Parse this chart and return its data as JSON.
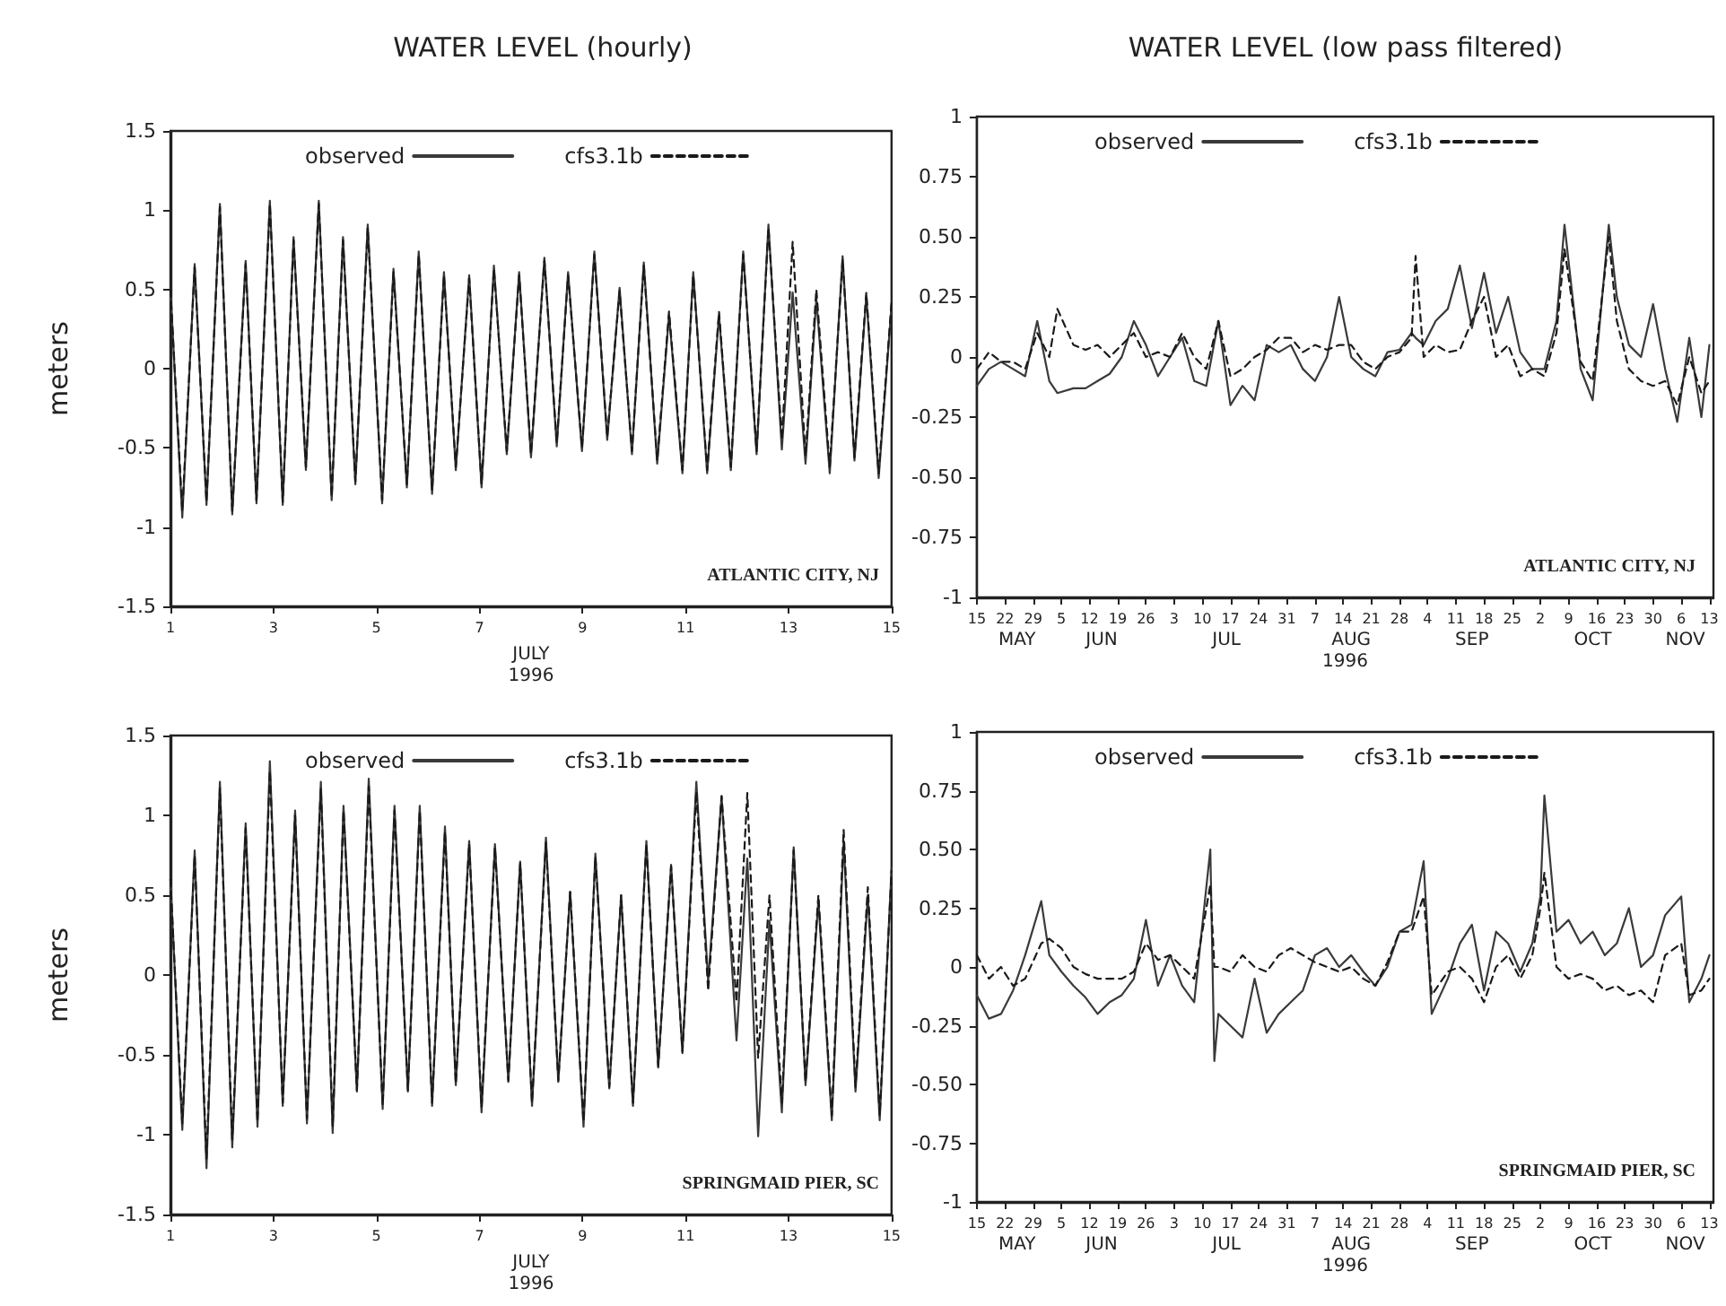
{
  "chart_data": [
    {
      "type": "line",
      "title": "WATER LEVEL (hourly)",
      "xlabel": "JULY\n1996",
      "ylabel": "meters",
      "annotations": [
        "ATLANTIC CITY, NJ"
      ],
      "legend": "top left",
      "marker": "none",
      "xlim": [
        1,
        15
      ],
      "xticks": [
        1,
        3,
        5,
        7,
        9,
        11,
        13,
        15
      ],
      "ylim": [
        -1.5,
        1.5
      ],
      "yticks": [
        -1.5,
        -1,
        -0.5,
        0,
        0.5,
        1,
        1.5
      ],
      "x": [
        1.0,
        1.23,
        1.47,
        1.7,
        1.96,
        2.2,
        2.46,
        2.67,
        2.93,
        3.18,
        3.39,
        3.63,
        3.88,
        4.13,
        4.35,
        4.59,
        4.83,
        5.11,
        5.33,
        5.59,
        5.82,
        6.08,
        6.31,
        6.54,
        6.8,
        7.04,
        7.28,
        7.53,
        7.77,
        8.0,
        8.26,
        8.5,
        8.72,
        8.99,
        9.23,
        9.48,
        9.72,
        9.96,
        10.19,
        10.45,
        10.68,
        10.94,
        11.15,
        11.42,
        11.65,
        11.88,
        12.12,
        12.38,
        12.61,
        12.87,
        13.08,
        13.33,
        13.54,
        13.8,
        14.05,
        14.28,
        14.51,
        14.75,
        15.0
      ],
      "series": [
        {
          "name": "observed",
          "color": "#3a3a3a",
          "line_style": "solid",
          "values": [
            0.5,
            -0.94,
            0.66,
            -0.86,
            1.04,
            -0.92,
            0.68,
            -0.85,
            1.06,
            -0.86,
            0.83,
            -0.64,
            1.06,
            -0.83,
            0.83,
            -0.73,
            0.91,
            -0.85,
            0.63,
            -0.75,
            0.74,
            -0.79,
            0.61,
            -0.64,
            0.59,
            -0.75,
            0.65,
            -0.54,
            0.61,
            -0.56,
            0.7,
            -0.49,
            0.61,
            -0.52,
            0.74,
            -0.45,
            0.51,
            -0.54,
            0.67,
            -0.6,
            0.34,
            -0.66,
            0.61,
            -0.66,
            0.34,
            -0.64,
            0.74,
            -0.54,
            0.91,
            -0.51,
            0.48,
            -0.6,
            0.44,
            -0.66,
            0.71,
            -0.58,
            0.46,
            -0.69,
            0.4
          ]
        },
        {
          "name": "cfs3.1b",
          "color": "#1a1a1a",
          "line_style": "dashed",
          "values": [
            0.5,
            -0.9,
            0.64,
            -0.84,
            1.02,
            -0.9,
            0.66,
            -0.83,
            1.04,
            -0.84,
            0.81,
            -0.62,
            1.04,
            -0.81,
            0.81,
            -0.71,
            0.89,
            -0.83,
            0.61,
            -0.73,
            0.72,
            -0.77,
            0.59,
            -0.62,
            0.57,
            -0.73,
            0.63,
            -0.52,
            0.59,
            -0.54,
            0.68,
            -0.47,
            0.59,
            -0.5,
            0.72,
            -0.43,
            0.49,
            -0.52,
            0.65,
            -0.58,
            0.36,
            -0.64,
            0.59,
            -0.64,
            0.36,
            -0.62,
            0.72,
            -0.52,
            0.89,
            -0.45,
            0.8,
            -0.55,
            0.5,
            -0.62,
            0.69,
            -0.56,
            0.48,
            -0.66,
            0.42
          ]
        }
      ]
    },
    {
      "type": "line",
      "title": "WATER LEVEL (low pass filtered)",
      "xlabel": "1996",
      "annotations": [
        "ATLANTIC CITY, NJ"
      ],
      "legend": "top left",
      "marker": "none",
      "xlim": [
        "1996-05-15",
        "1996-11-14"
      ],
      "xticks": [
        {
          "value": "1996-05-15",
          "label": "15"
        },
        {
          "value": "1996-05-22",
          "label": "22"
        },
        {
          "value": "1996-05-29",
          "label": "29"
        },
        {
          "value": "1996-06-05",
          "label": "5"
        },
        {
          "value": "1996-06-12",
          "label": "12"
        },
        {
          "value": "1996-06-19",
          "label": "19"
        },
        {
          "value": "1996-06-26",
          "label": "26"
        },
        {
          "value": "1996-07-03",
          "label": "3"
        },
        {
          "value": "1996-07-10",
          "label": "10"
        },
        {
          "value": "1996-07-17",
          "label": "17"
        },
        {
          "value": "1996-07-24",
          "label": "24"
        },
        {
          "value": "1996-07-31",
          "label": "31"
        },
        {
          "value": "1996-08-07",
          "label": "7"
        },
        {
          "value": "1996-08-14",
          "label": "14"
        },
        {
          "value": "1996-08-21",
          "label": "21"
        },
        {
          "value": "1996-08-28",
          "label": "28"
        },
        {
          "value": "1996-09-04",
          "label": "4"
        },
        {
          "value": "1996-09-11",
          "label": "11"
        },
        {
          "value": "1996-09-18",
          "label": "18"
        },
        {
          "value": "1996-09-25",
          "label": "25"
        },
        {
          "value": "1996-10-02",
          "label": "2"
        },
        {
          "value": "1996-10-09",
          "label": "9"
        },
        {
          "value": "1996-10-16",
          "label": "16"
        },
        {
          "value": "1996-10-23",
          "label": "23"
        },
        {
          "value": "1996-10-30",
          "label": "30"
        },
        {
          "value": "1996-11-06",
          "label": "6"
        },
        {
          "value": "1996-11-13",
          "label": "13"
        }
      ],
      "x2lim": [
        "1996-05-15",
        "1996-11-14"
      ],
      "x2ticks": [
        {
          "value": "1996-05-25",
          "label": "MAY"
        },
        {
          "value": "1996-06-15",
          "label": "JUN"
        },
        {
          "value": "1996-07-16",
          "label": "JUL"
        },
        {
          "value": "1996-08-16",
          "label": "AUG"
        },
        {
          "value": "1996-09-15",
          "label": "SEP"
        },
        {
          "value": "1996-10-15",
          "label": "OCT"
        },
        {
          "value": "1996-11-07",
          "label": "NOV"
        }
      ],
      "ylim": [
        -1,
        1
      ],
      "yticks": [
        -1,
        {
          "value": -0.75,
          "label": "-0.75"
        },
        {
          "value": -0.5,
          "label": "-0.50"
        },
        {
          "value": -0.25,
          "label": "-0.25"
        },
        0,
        0.25,
        {
          "value": 0.5,
          "label": "0.50"
        },
        0.75,
        1
      ],
      "x": [
        "1996-05-15",
        "1996-05-18",
        "1996-05-21",
        "1996-05-24",
        "1996-05-27",
        "1996-05-30",
        "1996-06-02",
        "1996-06-04",
        "1996-06-08",
        "1996-06-11",
        "1996-06-14",
        "1996-06-17",
        "1996-06-20",
        "1996-06-23",
        "1996-06-26",
        "1996-06-29",
        "1996-07-02",
        "1996-07-05",
        "1996-07-08",
        "1996-07-11",
        "1996-07-14",
        "1996-07-17",
        "1996-07-20",
        "1996-07-23",
        "1996-07-26",
        "1996-07-29",
        "1996-08-01",
        "1996-08-04",
        "1996-08-07",
        "1996-08-10",
        "1996-08-13",
        "1996-08-16",
        "1996-08-19",
        "1996-08-22",
        "1996-08-25",
        "1996-08-28",
        "1996-08-31",
        "1996-09-01",
        "1996-09-03",
        "1996-09-06",
        "1996-09-09",
        "1996-09-12",
        "1996-09-15",
        "1996-09-18",
        "1996-09-21",
        "1996-09-24",
        "1996-09-27",
        "1996-09-30",
        "1996-10-03",
        "1996-10-06",
        "1996-10-08",
        "1996-10-12",
        "1996-10-15",
        "1996-10-19",
        "1996-10-21",
        "1996-10-24",
        "1996-10-27",
        "1996-10-30",
        "1996-11-02",
        "1996-11-05",
        "1996-11-08",
        "1996-11-11",
        "1996-11-13"
      ],
      "series": [
        {
          "name": "observed",
          "color": "#3a3a3a",
          "line_style": "solid",
          "values": [
            -0.12,
            -0.05,
            -0.02,
            -0.05,
            -0.08,
            0.15,
            -0.1,
            -0.15,
            -0.13,
            -0.13,
            -0.1,
            -0.07,
            0.0,
            0.15,
            0.05,
            -0.08,
            0.0,
            0.08,
            -0.1,
            -0.12,
            0.15,
            -0.2,
            -0.12,
            -0.18,
            0.05,
            0.02,
            0.05,
            -0.05,
            -0.1,
            0.0,
            0.25,
            0.0,
            -0.05,
            -0.08,
            0.02,
            0.03,
            0.1,
            0.08,
            0.05,
            0.15,
            0.2,
            0.38,
            0.12,
            0.35,
            0.1,
            0.25,
            0.02,
            -0.05,
            -0.05,
            0.15,
            0.55,
            -0.05,
            -0.18,
            0.55,
            0.25,
            0.05,
            0.0,
            0.22,
            -0.05,
            -0.27,
            0.08,
            -0.25,
            0.05
          ]
        },
        {
          "name": "cfs3.1b",
          "color": "#1a1a1a",
          "line_style": "dashed",
          "values": [
            -0.05,
            0.02,
            -0.02,
            -0.02,
            -0.05,
            0.1,
            0.0,
            0.2,
            0.05,
            0.03,
            0.05,
            0.0,
            0.05,
            0.1,
            0.0,
            0.02,
            0.0,
            0.1,
            0.0,
            -0.05,
            0.15,
            -0.08,
            -0.05,
            0.0,
            0.03,
            0.08,
            0.08,
            0.02,
            0.05,
            0.03,
            0.05,
            0.05,
            -0.02,
            -0.05,
            0.0,
            0.02,
            0.08,
            0.42,
            0.0,
            0.05,
            0.02,
            0.03,
            0.15,
            0.25,
            0.0,
            0.05,
            -0.08,
            -0.05,
            -0.08,
            0.1,
            0.45,
            -0.02,
            -0.1,
            0.5,
            0.15,
            -0.05,
            -0.1,
            -0.12,
            -0.1,
            -0.2,
            0.0,
            -0.15,
            -0.1
          ]
        }
      ]
    },
    {
      "type": "line",
      "xlabel": "JULY\n1996",
      "ylabel": "meters",
      "annotations": [
        "SPRINGMAID PIER, SC"
      ],
      "legend": "top left",
      "marker": "none",
      "xlim": [
        1,
        15
      ],
      "xticks": [
        1,
        3,
        5,
        7,
        9,
        11,
        13,
        15
      ],
      "ylim": [
        -1.5,
        1.5
      ],
      "yticks": [
        -1.5,
        -1,
        -0.5,
        0,
        0.5,
        1,
        1.5
      ],
      "x": [
        1.0,
        1.23,
        1.47,
        1.7,
        1.96,
        2.2,
        2.46,
        2.69,
        2.93,
        3.18,
        3.42,
        3.65,
        3.92,
        4.15,
        4.36,
        4.62,
        4.85,
        5.12,
        5.35,
        5.61,
        5.84,
        6.08,
        6.33,
        6.54,
        6.8,
        7.04,
        7.3,
        7.56,
        7.79,
        8.02,
        8.29,
        8.53,
        8.76,
        9.02,
        9.25,
        9.52,
        9.75,
        9.98,
        10.24,
        10.47,
        10.72,
        10.94,
        11.21,
        11.44,
        11.7,
        11.99,
        12.2,
        12.41,
        12.63,
        12.87,
        13.1,
        13.33,
        13.58,
        13.84,
        14.07,
        14.3,
        14.54,
        14.77,
        15.0
      ],
      "series": [
        {
          "name": "observed",
          "color": "#3a3a3a",
          "line_style": "solid",
          "values": [
            0.6,
            -0.97,
            0.78,
            -1.21,
            1.21,
            -1.08,
            0.95,
            -0.95,
            1.34,
            -0.82,
            1.03,
            -0.93,
            1.21,
            -0.99,
            1.06,
            -0.73,
            1.23,
            -0.84,
            1.06,
            -0.73,
            1.06,
            -0.82,
            0.93,
            -0.69,
            0.84,
            -0.86,
            0.82,
            -0.67,
            0.71,
            -0.82,
            0.86,
            -0.67,
            0.52,
            -0.95,
            0.76,
            -0.71,
            0.5,
            -0.82,
            0.84,
            -0.58,
            0.69,
            -0.49,
            1.21,
            -0.04,
            1.12,
            -0.41,
            0.73,
            -1.01,
            0.34,
            -0.86,
            0.8,
            -0.69,
            0.47,
            -0.91,
            0.84,
            -0.73,
            0.5,
            -0.91,
            0.67
          ]
        },
        {
          "name": "cfs3.1b",
          "color": "#1a1a1a",
          "line_style": "dashed",
          "values": [
            0.6,
            -0.93,
            0.75,
            -1.15,
            1.17,
            -1.03,
            0.92,
            -0.92,
            1.28,
            -0.8,
            1.0,
            -0.9,
            1.17,
            -0.95,
            1.03,
            -0.72,
            1.18,
            -0.82,
            1.03,
            -0.72,
            1.03,
            -0.8,
            0.9,
            -0.68,
            0.82,
            -0.83,
            0.8,
            -0.66,
            0.7,
            -0.8,
            0.83,
            -0.66,
            0.52,
            -0.92,
            0.74,
            -0.7,
            0.5,
            -0.8,
            0.82,
            -0.57,
            0.68,
            -0.48,
            1.15,
            -0.1,
            1.12,
            -0.17,
            1.14,
            -0.52,
            0.5,
            -0.8,
            0.78,
            -0.67,
            0.5,
            -0.88,
            0.91,
            -0.7,
            0.55,
            -0.88,
            0.65
          ]
        }
      ]
    },
    {
      "type": "line",
      "xlabel": "1996",
      "annotations": [
        "SPRINGMAID PIER, SC"
      ],
      "legend": "top left",
      "marker": "none",
      "xlim": [
        "1996-05-15",
        "1996-11-14"
      ],
      "xticks": [
        {
          "value": "1996-05-15",
          "label": "15"
        },
        {
          "value": "1996-05-22",
          "label": "22"
        },
        {
          "value": "1996-05-29",
          "label": "29"
        },
        {
          "value": "1996-06-05",
          "label": "5"
        },
        {
          "value": "1996-06-12",
          "label": "12"
        },
        {
          "value": "1996-06-19",
          "label": "19"
        },
        {
          "value": "1996-06-26",
          "label": "26"
        },
        {
          "value": "1996-07-03",
          "label": "3"
        },
        {
          "value": "1996-07-10",
          "label": "10"
        },
        {
          "value": "1996-07-17",
          "label": "17"
        },
        {
          "value": "1996-07-24",
          "label": "24"
        },
        {
          "value": "1996-07-31",
          "label": "31"
        },
        {
          "value": "1996-08-07",
          "label": "7"
        },
        {
          "value": "1996-08-14",
          "label": "14"
        },
        {
          "value": "1996-08-21",
          "label": "21"
        },
        {
          "value": "1996-08-28",
          "label": "28"
        },
        {
          "value": "1996-09-04",
          "label": "4"
        },
        {
          "value": "1996-09-11",
          "label": "11"
        },
        {
          "value": "1996-09-18",
          "label": "18"
        },
        {
          "value": "1996-09-25",
          "label": "25"
        },
        {
          "value": "1996-10-02",
          "label": "2"
        },
        {
          "value": "1996-10-09",
          "label": "9"
        },
        {
          "value": "1996-10-16",
          "label": "16"
        },
        {
          "value": "1996-10-23",
          "label": "23"
        },
        {
          "value": "1996-10-30",
          "label": "30"
        },
        {
          "value": "1996-11-06",
          "label": "6"
        },
        {
          "value": "1996-11-13",
          "label": "13"
        }
      ],
      "x2lim": [
        "1996-05-15",
        "1996-11-14"
      ],
      "x2ticks": [
        {
          "value": "1996-05-25",
          "label": "MAY"
        },
        {
          "value": "1996-06-15",
          "label": "JUN"
        },
        {
          "value": "1996-07-16",
          "label": "JUL"
        },
        {
          "value": "1996-08-16",
          "label": "AUG"
        },
        {
          "value": "1996-09-15",
          "label": "SEP"
        },
        {
          "value": "1996-10-15",
          "label": "OCT"
        },
        {
          "value": "1996-11-07",
          "label": "NOV"
        }
      ],
      "ylim": [
        -1,
        1
      ],
      "yticks": [
        -1,
        {
          "value": -0.75,
          "label": "-0.75"
        },
        {
          "value": -0.5,
          "label": "-0.50"
        },
        {
          "value": -0.25,
          "label": "-0.25"
        },
        0,
        0.25,
        {
          "value": 0.5,
          "label": "0.50"
        },
        0.75,
        1
      ],
      "x": [
        "1996-05-15",
        "1996-05-18",
        "1996-05-21",
        "1996-05-24",
        "1996-05-27",
        "1996-05-31",
        "1996-06-02",
        "1996-06-05",
        "1996-06-08",
        "1996-06-11",
        "1996-06-14",
        "1996-06-17",
        "1996-06-20",
        "1996-06-23",
        "1996-06-26",
        "1996-06-29",
        "1996-07-02",
        "1996-07-05",
        "1996-07-08",
        "1996-07-12",
        "1996-07-13",
        "1996-07-14",
        "1996-07-17",
        "1996-07-20",
        "1996-07-23",
        "1996-07-26",
        "1996-07-29",
        "1996-08-01",
        "1996-08-04",
        "1996-08-07",
        "1996-08-10",
        "1996-08-13",
        "1996-08-16",
        "1996-08-19",
        "1996-08-22",
        "1996-08-25",
        "1996-08-28",
        "1996-08-31",
        "1996-09-03",
        "1996-09-05",
        "1996-09-09",
        "1996-09-12",
        "1996-09-15",
        "1996-09-18",
        "1996-09-21",
        "1996-09-24",
        "1996-09-27",
        "1996-09-30",
        "1996-10-02",
        "1996-10-03",
        "1996-10-06",
        "1996-10-09",
        "1996-10-12",
        "1996-10-15",
        "1996-10-18",
        "1996-10-21",
        "1996-10-24",
        "1996-10-27",
        "1996-10-30",
        "1996-11-02",
        "1996-11-06",
        "1996-11-08",
        "1996-11-11",
        "1996-11-13"
      ],
      "series": [
        {
          "name": "observed",
          "color": "#3a3a3a",
          "line_style": "solid",
          "values": [
            -0.12,
            -0.22,
            -0.2,
            -0.1,
            0.05,
            0.28,
            0.05,
            -0.02,
            -0.08,
            -0.13,
            -0.2,
            -0.15,
            -0.12,
            -0.05,
            0.2,
            -0.08,
            0.05,
            -0.08,
            -0.15,
            0.5,
            -0.4,
            -0.2,
            -0.25,
            -0.3,
            -0.05,
            -0.28,
            -0.2,
            -0.15,
            -0.1,
            0.05,
            0.08,
            0.0,
            0.05,
            -0.02,
            -0.08,
            0.0,
            0.15,
            0.18,
            0.45,
            -0.2,
            -0.05,
            0.1,
            0.18,
            -0.1,
            0.15,
            0.1,
            -0.02,
            0.1,
            0.3,
            0.73,
            0.15,
            0.2,
            0.1,
            0.15,
            0.05,
            0.1,
            0.25,
            0.0,
            0.05,
            0.22,
            0.3,
            -0.15,
            -0.05,
            0.05
          ]
        },
        {
          "name": "cfs3.1b",
          "color": "#1a1a1a",
          "line_style": "dashed",
          "values": [
            0.05,
            -0.05,
            0.0,
            -0.08,
            -0.05,
            0.1,
            0.12,
            0.08,
            0.0,
            -0.03,
            -0.05,
            -0.05,
            -0.05,
            -0.02,
            0.1,
            0.03,
            0.05,
            0.0,
            -0.05,
            0.35,
            0.0,
            0.0,
            -0.02,
            0.05,
            0.0,
            -0.02,
            0.05,
            0.08,
            0.05,
            0.02,
            0.0,
            -0.02,
            0.0,
            -0.05,
            -0.08,
            0.02,
            0.15,
            0.15,
            0.3,
            -0.12,
            -0.02,
            0.0,
            -0.05,
            -0.15,
            0.0,
            0.05,
            -0.05,
            0.05,
            0.25,
            0.4,
            0.0,
            -0.05,
            -0.03,
            -0.05,
            -0.1,
            -0.08,
            -0.12,
            -0.1,
            -0.15,
            0.05,
            0.1,
            -0.12,
            -0.1,
            -0.05
          ]
        }
      ]
    }
  ]
}
